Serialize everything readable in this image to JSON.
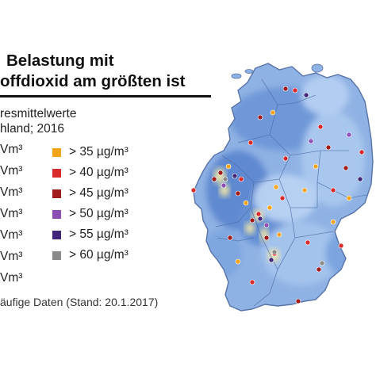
{
  "title_line1": "Belastung mit",
  "title_line2": "offdioxid am größten ist",
  "subtitle_line1": "resmittelwerte",
  "subtitle_line2": "hland; 2016",
  "left_legend": [
    "Vm³",
    "Vm³",
    "Vm³",
    "Vm³",
    "Vm³",
    "Vm³",
    "Vm³"
  ],
  "right_legend": [
    {
      "label": "> 35 µg/m³",
      "color": "#f2a51a"
    },
    {
      "label": "> 40 µg/m³",
      "color": "#d92b2b"
    },
    {
      "label": "> 45 µg/m³",
      "color": "#a01c1c"
    },
    {
      "label": "> 50 µg/m³",
      "color": "#8b4fb3"
    },
    {
      "label": "> 55 µg/m³",
      "color": "#40257a"
    },
    {
      "label": "> 60 µg/m³",
      "color": "#8a8a8a"
    }
  ],
  "source": "äufige Daten (Stand: 20.1.2017)",
  "colors": {
    "map_light": "#a8c6ec",
    "map_mid": "#7fa6df",
    "map_dark": "#5b86cf",
    "hotspot": "#f3e7a6",
    "border": "#5873a8"
  }
}
